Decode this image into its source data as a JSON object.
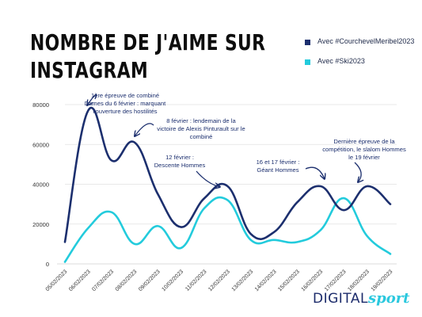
{
  "title_lines": [
    "NOMBRE DE J'AIME SUR",
    "INSTAGRAM"
  ],
  "colors": {
    "series1": "#1c2f6e",
    "series2": "#23cbdc",
    "annotation": "#1c2f6e",
    "axis_text": "#333333",
    "grid": "#e2e2e2"
  },
  "chart_data": {
    "type": "line",
    "x": [
      "05/02/2023",
      "06/02/2023",
      "07/02/2023",
      "08/02/2023",
      "09/02/2023",
      "10/02/2023",
      "11/02/2023",
      "12/02/2023",
      "13/02/2023",
      "14/02/2023",
      "15/02/2023",
      "16/02/2023",
      "17/02/2023",
      "18/02/2023",
      "19/02/2023"
    ],
    "series": [
      {
        "name": "Avec #CourchevelMeribel2023",
        "values": [
          11000,
          77000,
          52000,
          61000,
          35000,
          18500,
          33000,
          39000,
          15000,
          16000,
          31000,
          39000,
          27000,
          39000,
          30000
        ]
      },
      {
        "name": "Avec #Ski2023",
        "values": [
          1000,
          18000,
          26000,
          10000,
          19000,
          8000,
          28000,
          32000,
          12000,
          12000,
          11000,
          17000,
          33000,
          14000,
          5000
        ]
      }
    ],
    "yticks": [
      "0",
      "20000",
      "40000",
      "60000",
      "80000"
    ],
    "ylim": [
      0,
      80000
    ],
    "grid": true,
    "legend_position": "top-right",
    "annotations": [
      {
        "x_index": 1,
        "y": 77000,
        "lines": [
          "1ère épreuve de combiné",
          "Dames du 6 février : marquant",
          "l'ouverture des hostilités"
        ]
      },
      {
        "x_index": 3,
        "y": 61000,
        "lines": [
          "8 février : lendemain de la",
          "victoire de Alexis Pinturault sur le",
          "combiné"
        ]
      },
      {
        "x_index": 7,
        "y": 39000,
        "lines": [
          "12 février :",
          "Descente Hommes"
        ]
      },
      {
        "x_index": 11,
        "y": 39000,
        "lines": [
          "16 et 17 février :",
          "Géant Hommes"
        ]
      },
      {
        "x_index": 13,
        "y": 39000,
        "lines": [
          "Dernière épreuve de la",
          "compétition, le slalom Hommes",
          "le 19 février"
        ]
      }
    ]
  },
  "logo": {
    "digital": "DIGITAL",
    "sport": "sport"
  }
}
